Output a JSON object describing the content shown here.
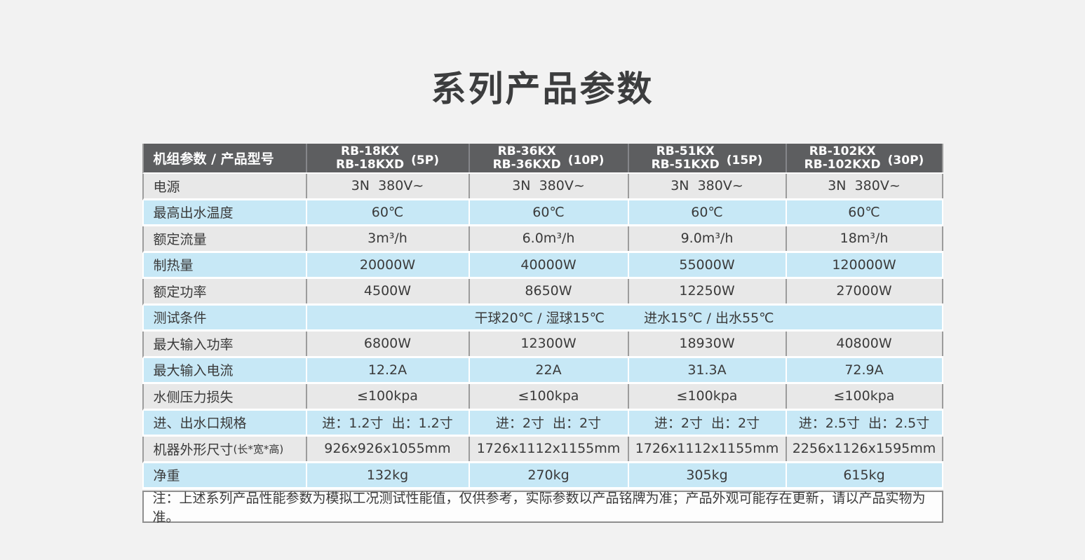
{
  "page": {
    "title": "系列产品参数"
  },
  "colors": {
    "page_bg": "#f2f2f2",
    "header_bg": "#5d5e60",
    "header_text": "#ffffff",
    "row_blue": "#c7e8f6",
    "row_gray": "#e8e8e8",
    "grid_line": "#9c9c9c",
    "row_gap": "#ffffff",
    "text": "#3a3a3a",
    "note_bg": "#fdfdfd",
    "note_border": "#8f8f8f"
  },
  "table": {
    "corner_label": "机组参数 / 产品型号",
    "model_columns": [
      {
        "model_line1": "RB-18KX",
        "model_line2": "RB-18KXD",
        "power": "(5P)"
      },
      {
        "model_line1": "RB-36KX",
        "model_line2": "RB-36KXD",
        "power": "(10P)"
      },
      {
        "model_line1": "RB-51KX",
        "model_line2": "RB-51KXD",
        "power": "(15P)"
      },
      {
        "model_line1": "RB-102KX",
        "model_line2": "RB-102KXD",
        "power": "(30P)"
      }
    ],
    "rows": [
      {
        "label": "电源",
        "tone": "gray",
        "values": [
          "3N  380V~",
          "3N  380V~",
          "3N  380V~",
          "3N  380V~"
        ]
      },
      {
        "label": "最高出水温度",
        "tone": "blue",
        "values": [
          "60℃",
          "60℃",
          "60℃",
          "60℃"
        ]
      },
      {
        "label": "额定流量",
        "tone": "gray",
        "values": [
          "3m³/h",
          "6.0m³/h",
          "9.0m³/h",
          "18m³/h"
        ]
      },
      {
        "label": "制热量",
        "tone": "blue",
        "values": [
          "20000W",
          "40000W",
          "55000W",
          "120000W"
        ]
      },
      {
        "label": "额定功率",
        "tone": "gray",
        "values": [
          "4500W",
          "8650W",
          "12250W",
          "27000W"
        ]
      },
      {
        "label": "测试条件",
        "tone": "blue",
        "span": true,
        "values": [
          "干球20℃ / 湿球15℃",
          "进水15℃ / 出水55℃"
        ]
      },
      {
        "label": "最大输入功率",
        "tone": "gray",
        "values": [
          "6800W",
          "12300W",
          "18930W",
          "40800W"
        ]
      },
      {
        "label": "最大输入电流",
        "tone": "blue",
        "values": [
          "12.2A",
          "22A",
          "31.3A",
          "72.9A"
        ]
      },
      {
        "label": "水侧压力损失",
        "tone": "gray",
        "values": [
          "≤100kpa",
          "≤100kpa",
          "≤100kpa",
          "≤100kpa"
        ]
      },
      {
        "label": "进、出水口规格",
        "tone": "blue",
        "values": [
          "进：1.2寸  出：1.2寸",
          "进：2寸  出：2寸",
          "进：2寸  出：2寸",
          "进：2.5寸  出：2.5寸"
        ]
      },
      {
        "label": "机器外形尺寸",
        "label_suffix": "(长*宽*高)",
        "tone": "gray",
        "values": [
          "926x926x1055mm",
          "1726x1112x1155mm",
          "1726x1112x1155mm",
          "2256x1126x1595mm"
        ]
      },
      {
        "label": "净重",
        "tone": "blue",
        "values": [
          "132kg",
          "270kg",
          "305kg",
          "615kg"
        ]
      }
    ],
    "note": "注：上述系列产品性能参数为模拟工况测试性能值，仅供参考，实际参数以产品铭牌为准；产品外观可能存在更新，请以产品实物为准。"
  }
}
